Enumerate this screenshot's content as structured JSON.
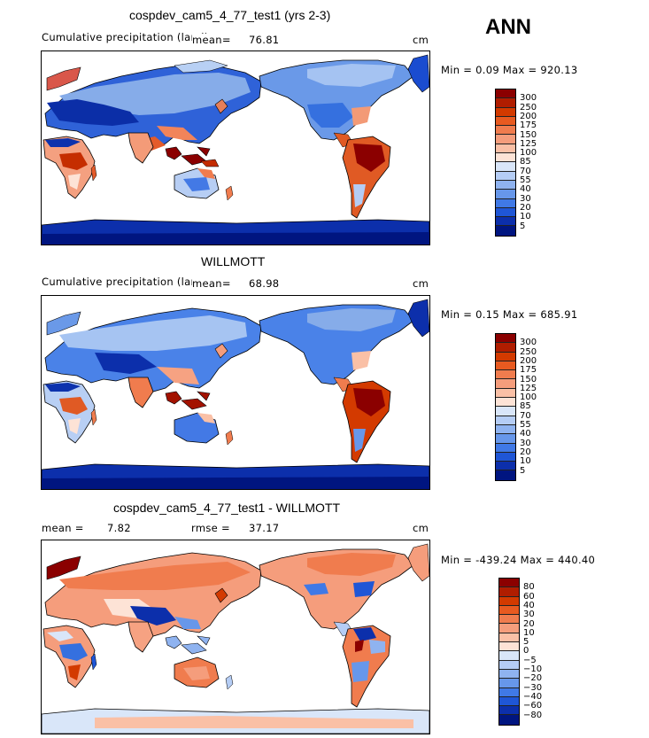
{
  "season": "ANN",
  "panels": [
    {
      "title": "cospdev_cam5_4_77_test1 (yrs 2-3)",
      "subtitle": "Cumulative precipitation (land)",
      "mean_label": "mean=",
      "mean_value": "76.81",
      "units": "cm",
      "minmax": "Min =   0.09 Max = 920.13",
      "levels": [
        "300",
        "250",
        "200",
        "175",
        "150",
        "125",
        "100",
        "85",
        "70",
        "55",
        "40",
        "30",
        "20",
        "10",
        "5"
      ],
      "colors": [
        "#8b0000",
        "#b01d00",
        "#d33a00",
        "#e85a20",
        "#f07c4e",
        "#f59d7c",
        "#fac0a6",
        "#fde3d6",
        "#d9e6f9",
        "#b5cdf5",
        "#8fb3f0",
        "#6797ea",
        "#4079e6",
        "#1f56d6",
        "#0c2fab",
        "#001580"
      ]
    },
    {
      "title": "WILLMOTT",
      "subtitle": "Cumulative precipitation (land)",
      "mean_label": "mean=",
      "mean_value": "68.98",
      "units": "cm",
      "minmax": "Min =   0.15 Max = 685.91",
      "levels": [
        "300",
        "250",
        "200",
        "175",
        "150",
        "125",
        "100",
        "85",
        "70",
        "55",
        "40",
        "30",
        "20",
        "10",
        "5"
      ],
      "colors": [
        "#8b0000",
        "#b01d00",
        "#d33a00",
        "#e85a20",
        "#f07c4e",
        "#f59d7c",
        "#fac0a6",
        "#fde3d6",
        "#d9e6f9",
        "#b5cdf5",
        "#8fb3f0",
        "#6797ea",
        "#4079e6",
        "#1f56d6",
        "#0c2fab",
        "#001580"
      ]
    },
    {
      "title": "cospdev_cam5_4_77_test1 - WILLMOTT",
      "mean_label": "mean =",
      "mean_value": "7.82",
      "rmse_label": "rmse =",
      "rmse_value": "37.17",
      "units": "cm",
      "minmax": "Min = -439.24 Max = 440.40",
      "levels": [
        "80",
        "60",
        "40",
        "30",
        "20",
        "10",
        "5",
        "0",
        "−5",
        "−10",
        "−20",
        "−30",
        "−40",
        "−60",
        "−80"
      ],
      "colors": [
        "#8b0000",
        "#b01d00",
        "#d33a00",
        "#e85a20",
        "#f07c4e",
        "#f59d7c",
        "#fac0a6",
        "#fde3d6",
        "#d9e6f9",
        "#b5cdf5",
        "#8fb3f0",
        "#6797ea",
        "#4079e6",
        "#1f56d6",
        "#0c2fab",
        "#001580"
      ]
    }
  ]
}
